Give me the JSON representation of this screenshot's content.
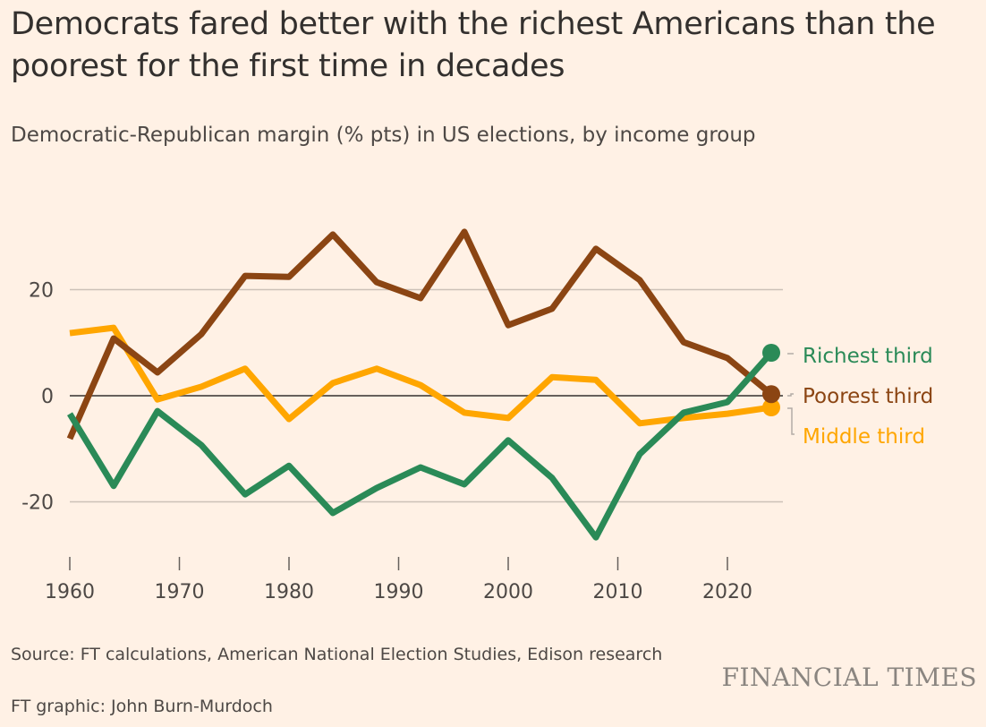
{
  "title": "Democrats fared better with the richest Americans than the poorest for the first time in decades",
  "subtitle": "Democratic-Republican margin (% pts) in US elections, by income group",
  "source": "Source: FT calculations, American National Election Studies, Edison research",
  "credit": "FT graphic: John Burn-Murdoch",
  "logo": "FINANCIAL TIMES",
  "chart_data": {
    "type": "line",
    "title": "Democrats fared better with the richest Americans than the poorest for the first time in decades",
    "ylabel": "Democratic-Republican margin (% pts)",
    "xlabel": "",
    "x": [
      1960,
      1964,
      1968,
      1972,
      1976,
      1980,
      1984,
      1988,
      1992,
      1996,
      2000,
      2004,
      2008,
      2012,
      2016,
      2020,
      2024
    ],
    "xlim": [
      1960,
      2025
    ],
    "ylim": [
      -31,
      34
    ],
    "xticks": [
      "1960",
      "1970",
      "1980",
      "1990",
      "2000",
      "2010",
      "2020"
    ],
    "yticks": [
      "20",
      "0",
      "-20"
    ],
    "grid": true,
    "legend": "direct labels at line ends (right)",
    "series": [
      {
        "name": "Middle third",
        "color": "#ffa600",
        "values": [
          11.8,
          12.8,
          -0.7,
          1.7,
          5.1,
          -4.4,
          2.4,
          5.1,
          2.0,
          -3.2,
          -4.2,
          3.5,
          3.0,
          -5.2,
          -4.2,
          -3.4,
          -2.2
        ]
      },
      {
        "name": "Poorest third",
        "color": "#8b4513",
        "values": [
          -8.1,
          10.8,
          4.4,
          11.6,
          22.6,
          22.4,
          30.4,
          21.4,
          18.4,
          30.9,
          13.3,
          16.4,
          27.7,
          21.8,
          10.1,
          7.1,
          0.3
        ]
      },
      {
        "name": "Richest third",
        "color": "#2a8a57",
        "values": [
          -3.4,
          -17.0,
          -2.9,
          -9.3,
          -18.6,
          -13.2,
          -22.1,
          -17.4,
          -13.5,
          -16.7,
          -8.4,
          -15.5,
          -26.7,
          -11.0,
          -3.2,
          -1.2,
          8.1
        ]
      }
    ]
  }
}
